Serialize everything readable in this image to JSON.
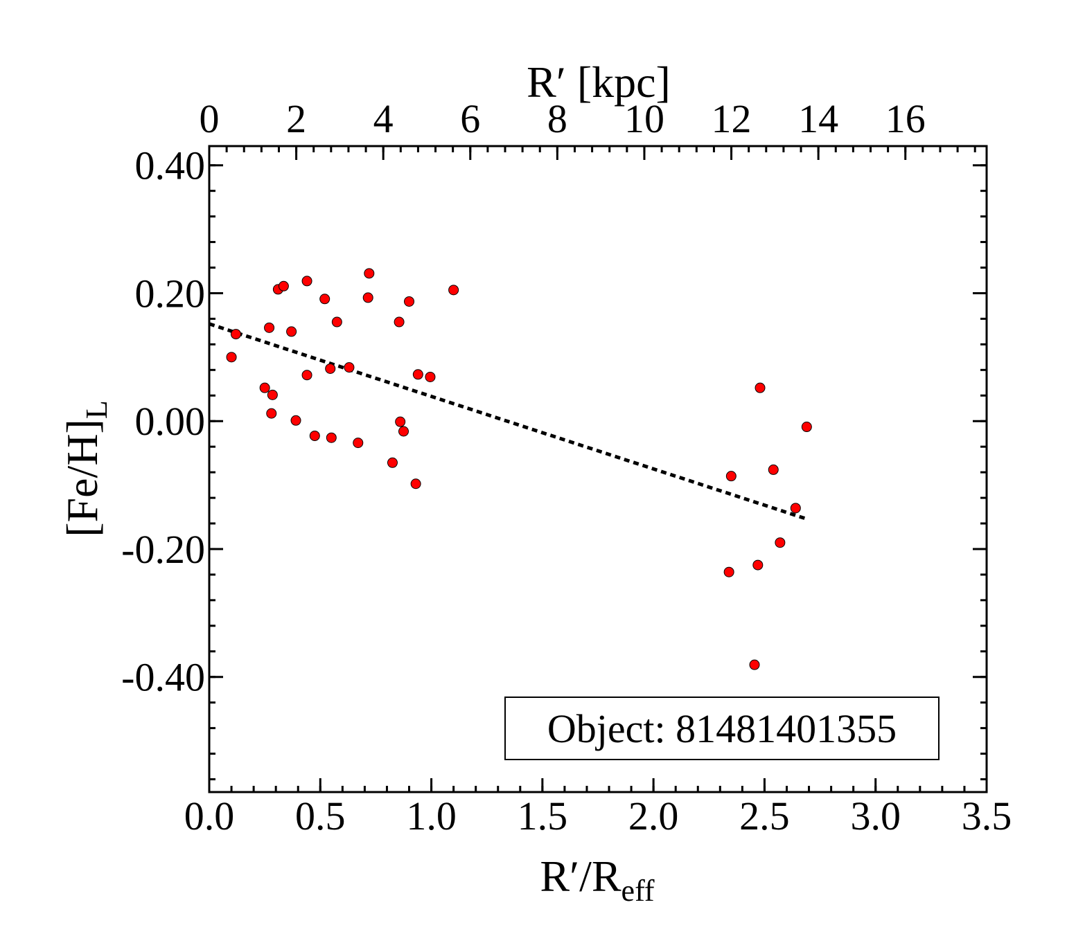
{
  "chart_data": {
    "type": "scatter",
    "xlabel_main": "R′/R",
    "xlabel_sub": "eff",
    "ylabel_main": "[Fe/H]",
    "ylabel_sub": "L",
    "top_xlabel": "R′ [kpc]",
    "annotation": "Object: 81481401355",
    "xlim": [
      0.0,
      3.5
    ],
    "ylim": [
      -0.58,
      0.43
    ],
    "xticks": [
      0.0,
      0.5,
      1.0,
      1.5,
      2.0,
      2.5,
      3.0,
      3.5
    ],
    "xtick_labels": [
      "0.0",
      "0.5",
      "1.0",
      "1.5",
      "2.0",
      "2.5",
      "3.0",
      "3.5"
    ],
    "yticks": [
      0.4,
      0.2,
      0.0,
      -0.2,
      -0.4
    ],
    "ytick_labels": [
      "0.40",
      "0.20",
      "0.00",
      "-0.20",
      "-0.40"
    ],
    "top_xtick_kpc": [
      0,
      2,
      4,
      6,
      8,
      10,
      12,
      14,
      16
    ],
    "top_xtick_labels": [
      "0",
      "2",
      "4",
      "6",
      "8",
      "10",
      "12",
      "14",
      "16"
    ],
    "kpc_per_reff": 5.105,
    "marker_color": "#ff0000",
    "points": [
      [
        0.1,
        0.1
      ],
      [
        0.12,
        0.136
      ],
      [
        0.25,
        0.052
      ],
      [
        0.27,
        0.146
      ],
      [
        0.28,
        0.012
      ],
      [
        0.285,
        0.041
      ],
      [
        0.31,
        0.206
      ],
      [
        0.335,
        0.211
      ],
      [
        0.37,
        0.14
      ],
      [
        0.39,
        0.001
      ],
      [
        0.44,
        0.219
      ],
      [
        0.44,
        0.072
      ],
      [
        0.475,
        -0.023
      ],
      [
        0.52,
        0.191
      ],
      [
        0.545,
        0.082
      ],
      [
        0.55,
        -0.026
      ],
      [
        0.575,
        0.155
      ],
      [
        0.63,
        0.084
      ],
      [
        0.67,
        -0.034
      ],
      [
        0.715,
        0.193
      ],
      [
        0.72,
        0.231
      ],
      [
        0.825,
        -0.065
      ],
      [
        0.855,
        0.155
      ],
      [
        0.86,
        -0.001
      ],
      [
        0.875,
        -0.016
      ],
      [
        0.9,
        0.187
      ],
      [
        0.93,
        -0.098
      ],
      [
        0.94,
        0.073
      ],
      [
        0.995,
        0.069
      ],
      [
        1.1,
        0.205
      ],
      [
        2.34,
        -0.236
      ],
      [
        2.35,
        -0.086
      ],
      [
        2.455,
        -0.381
      ],
      [
        2.47,
        -0.225
      ],
      [
        2.48,
        0.052
      ],
      [
        2.54,
        -0.076
      ],
      [
        2.57,
        -0.19
      ],
      [
        2.64,
        -0.136
      ],
      [
        2.69,
        -0.009
      ]
    ],
    "trend_line": {
      "x": [
        0.0,
        2.69
      ],
      "y": [
        0.152,
        -0.153
      ],
      "style": "dotted"
    }
  }
}
